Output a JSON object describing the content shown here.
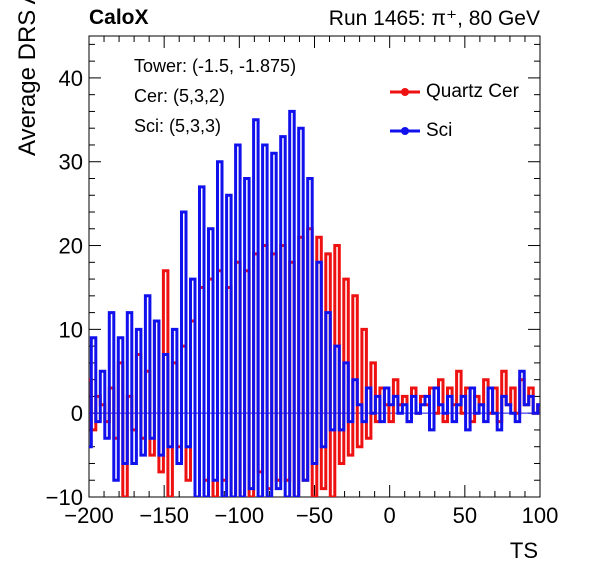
{
  "header": {
    "left": "CaloX",
    "right": "Run 1465: π⁺, 80 GeV"
  },
  "annotations": [
    "Tower: (-1.5, -1.875)",
    "Cer: (5,3,2)",
    "Sci: (5,3,3)"
  ],
  "chart_data": {
    "type": "line",
    "title": "",
    "xlabel": "TS",
    "ylabel": "Average DRS ADC",
    "xlim": [
      -200,
      100
    ],
    "ylim": [
      -10,
      45
    ],
    "x_ticks": [
      -200,
      -150,
      -100,
      -50,
      0,
      50,
      100
    ],
    "x_tick_labels": [
      "−200",
      "−150",
      "−100",
      "−50",
      "0",
      "50",
      "100"
    ],
    "y_ticks": [
      -10,
      0,
      10,
      20,
      30,
      40
    ],
    "y_tick_labels": [
      "−10",
      "0",
      "10",
      "20",
      "30",
      "40"
    ],
    "grid": false,
    "legend_position": "top-right",
    "x": [
      -200,
      -197,
      -194,
      -191,
      -188,
      -185,
      -182,
      -179,
      -176,
      -173,
      -170,
      -167,
      -164,
      -161,
      -158,
      -155,
      -152,
      -149,
      -146,
      -143,
      -140,
      -137,
      -134,
      -131,
      -128,
      -125,
      -122,
      -119,
      -116,
      -113,
      -110,
      -107,
      -104,
      -101,
      -98,
      -95,
      -92,
      -89,
      -86,
      -83,
      -80,
      -77,
      -74,
      -71,
      -68,
      -65,
      -62,
      -59,
      -56,
      -53,
      -50,
      -47,
      -44,
      -41,
      -38,
      -35,
      -32,
      -29,
      -26,
      -23,
      -20,
      -17,
      -14,
      -11,
      -8,
      -5,
      -2,
      1,
      4,
      7,
      10,
      13,
      16,
      19,
      22,
      25,
      28,
      31,
      34,
      37,
      40,
      43,
      46,
      49,
      52,
      55,
      58,
      61,
      64,
      67,
      70,
      73,
      76,
      79,
      82,
      85,
      88,
      91,
      94,
      97,
      100
    ],
    "series": [
      {
        "name": "Quartz Cer",
        "color": "#ee1111",
        "values": [
          4,
          -2,
          2,
          1,
          -1,
          3,
          -3,
          6,
          -10,
          2,
          -2,
          7,
          -3,
          5,
          -5,
          11,
          -7,
          17,
          -10,
          6,
          -4,
          8,
          -8,
          11,
          -10,
          15,
          -8,
          16,
          -10,
          17,
          -8,
          15,
          -10,
          18,
          -10,
          17,
          -10,
          19,
          -7,
          20,
          -9,
          19,
          -8,
          20,
          -8,
          18,
          -10,
          21,
          -8,
          22,
          -10,
          21,
          -9,
          19,
          -10,
          20,
          -6,
          16,
          -5,
          14,
          -4,
          10,
          -3,
          6,
          -1,
          3,
          1,
          -1,
          4,
          1,
          2,
          -1,
          3,
          0,
          2,
          1,
          3,
          0,
          4,
          -1,
          3,
          1,
          5,
          0,
          3,
          -1,
          2,
          1,
          4,
          0,
          3,
          -1,
          5,
          1,
          3,
          0,
          4,
          1,
          3,
          0,
          1
        ]
      },
      {
        "name": "Sci",
        "color": "#1111ee",
        "values": [
          -4,
          9,
          -1,
          5,
          -3,
          12,
          -8,
          9,
          -6,
          12,
          -6,
          10,
          -5,
          14,
          -3,
          11,
          -5,
          7,
          -4,
          10,
          -6,
          24,
          -4,
          16,
          -10,
          27,
          -10,
          22,
          -8,
          30,
          -10,
          26,
          -10,
          32,
          -10,
          28,
          -9,
          35,
          -10,
          32,
          -10,
          31,
          -9,
          33,
          -10,
          36,
          -10,
          34,
          -8,
          28,
          -6,
          18,
          -4,
          12,
          -2,
          8,
          -2,
          6,
          -1,
          4,
          1,
          -1,
          3,
          0,
          2,
          -1,
          3,
          1,
          2,
          0,
          1,
          -1,
          2,
          0,
          1,
          2,
          -2,
          3,
          1,
          0,
          2,
          -1,
          1,
          2,
          -2,
          3,
          0,
          1,
          -1,
          3,
          0,
          -2,
          2,
          1,
          0,
          -1,
          5,
          1,
          2,
          0,
          1
        ]
      }
    ]
  }
}
